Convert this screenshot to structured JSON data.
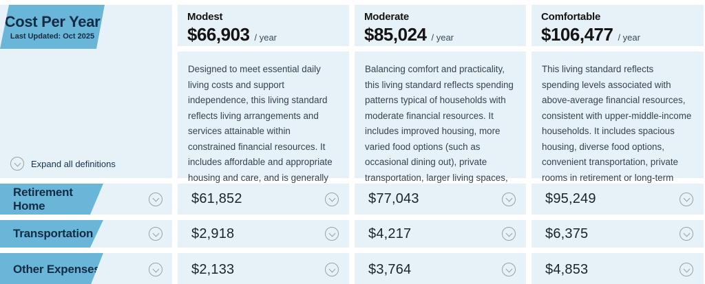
{
  "header": {
    "title": "Cost Per Year",
    "subtitle": "Last Updated: Oct 2025",
    "expand_label": "Expand all definitions"
  },
  "columns": [
    {
      "name": "Modest",
      "price": "$66,903",
      "per": "/ year",
      "description": "Designed to meet essential daily living costs and support independence, this living standard reflects living arrangements and services attainable within constrained financial resources. It includes affordable and appropriate housing and care, and is generally associated with lower-income households."
    },
    {
      "name": "Moderate",
      "price": "$85,024",
      "per": "/ year",
      "description": "Balancing comfort and practicality, this living standard reflects spending patterns typical of households with moderate financial resources. It includes improved housing, more varied food options (such as occasional dining out), private transportation, larger living spaces, semi-private rooms in retirement or long-term care homes and occasional domestic travel."
    },
    {
      "name": "Comfortable",
      "price": "$106,477",
      "per": "/ year",
      "description": "This living standard reflects spending levels associated with above-average financial resources, consistent with upper-middle-income households. It includes spacious housing, diverse food options, convenient transportation, private rooms in retirement or long-term care homes, broader recreational travel and the option of private insurance for enhanced health-care coverage."
    }
  ],
  "rows": [
    {
      "label": "Retirement Home",
      "values": [
        "$61,852",
        "$77,043",
        "$95,249"
      ]
    },
    {
      "label": "Transportation",
      "values": [
        "$2,918",
        "$4,217",
        "$6,375"
      ]
    },
    {
      "label": "Other Expenses",
      "values": [
        "$2,133",
        "$3,764",
        "$4,853"
      ]
    }
  ],
  "icons": {
    "chevron": "chevron-down-circle"
  },
  "colors": {
    "accent_blue": "#69b6d8",
    "cell_background": "#e6f1f8",
    "navy_text": "#132c45",
    "body_text": "#36434e",
    "chevron_gray": "#98a1a8"
  }
}
